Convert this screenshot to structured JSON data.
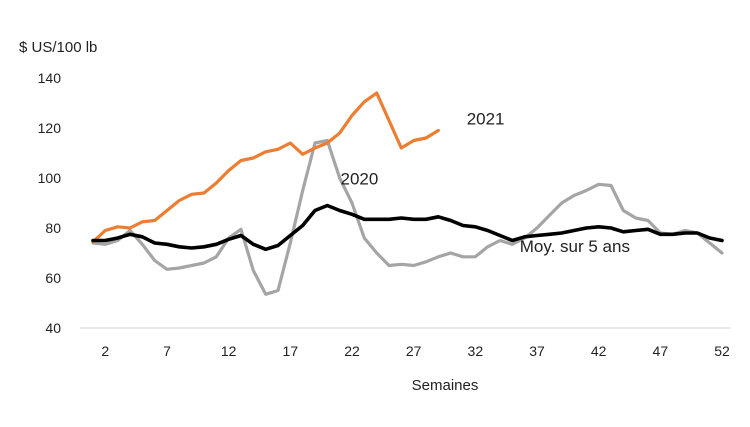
{
  "chart_data": {
    "type": "line",
    "ylabel": "$ US/100 lb",
    "xlabel": "Semaines",
    "ylim": [
      40,
      140
    ],
    "xlim": [
      1,
      52
    ],
    "grid": false,
    "y_ticks": [
      40,
      60,
      80,
      100,
      120,
      140
    ],
    "x_ticks": [
      2,
      7,
      12,
      17,
      22,
      27,
      32,
      37,
      42,
      47,
      52
    ],
    "series": [
      {
        "name": "2021",
        "label": "2021",
        "color": "#ED7D31",
        "x": [
          1,
          2,
          3,
          4,
          5,
          6,
          7,
          8,
          9,
          10,
          11,
          12,
          13,
          14,
          15,
          16,
          17,
          18,
          19,
          20,
          21,
          22,
          23,
          24,
          25,
          26,
          27,
          28,
          29
        ],
        "values": [
          74.5,
          79,
          80.5,
          80,
          82.5,
          83,
          87,
          91,
          93.5,
          94,
          98,
          103,
          107,
          108,
          110.5,
          111.5,
          114,
          109.5,
          112,
          114,
          118,
          125,
          130.5,
          134,
          123,
          112,
          115,
          116,
          119
        ]
      },
      {
        "name": "2020",
        "label": "2020",
        "color": "#A5A5A5",
        "x": [
          1,
          2,
          3,
          4,
          5,
          6,
          7,
          8,
          9,
          10,
          11,
          12,
          13,
          14,
          15,
          16,
          17,
          18,
          19,
          20,
          21,
          22,
          23,
          24,
          25,
          26,
          27,
          28,
          29,
          30,
          31,
          32,
          33,
          34,
          35,
          36,
          37,
          38,
          39,
          40,
          41,
          42,
          43,
          44,
          45,
          46,
          47,
          48,
          49,
          50,
          51,
          52
        ],
        "values": [
          74,
          73.5,
          75,
          79,
          73.5,
          67,
          63.5,
          64,
          65,
          66,
          68.5,
          76,
          79.5,
          63,
          53.5,
          55,
          74,
          95,
          114,
          115,
          100,
          90,
          76,
          70,
          65,
          65.5,
          65,
          66.5,
          68.5,
          70,
          68.5,
          68.5,
          72.5,
          75,
          73.5,
          76,
          80,
          85,
          90,
          93,
          95,
          97.5,
          97,
          87,
          84,
          83,
          78,
          77.5,
          79,
          78,
          74,
          70
        ]
      },
      {
        "name": "Moy. sur 5 ans",
        "label": "Moy. sur 5 ans",
        "color": "#000000",
        "x": [
          1,
          2,
          3,
          4,
          5,
          6,
          7,
          8,
          9,
          10,
          11,
          12,
          13,
          14,
          15,
          16,
          17,
          18,
          19,
          20,
          21,
          22,
          23,
          24,
          25,
          26,
          27,
          28,
          29,
          30,
          31,
          32,
          33,
          34,
          35,
          36,
          37,
          38,
          39,
          40,
          41,
          42,
          43,
          44,
          45,
          46,
          47,
          48,
          49,
          50,
          51,
          52
        ],
        "values": [
          75,
          75,
          76,
          77.5,
          76.5,
          74,
          73.5,
          72.5,
          72,
          72.5,
          73.5,
          75.5,
          77,
          73.5,
          71.5,
          73,
          77,
          81,
          87,
          89,
          87,
          85.5,
          83.5,
          83.5,
          83.5,
          84,
          83.5,
          83.5,
          84.5,
          83,
          81,
          80.5,
          79,
          77,
          75,
          76.5,
          77,
          77.5,
          78,
          79,
          80,
          80.5,
          80,
          78.5,
          79,
          79.5,
          77.5,
          77.5,
          78,
          78,
          76,
          75
        ]
      }
    ]
  }
}
